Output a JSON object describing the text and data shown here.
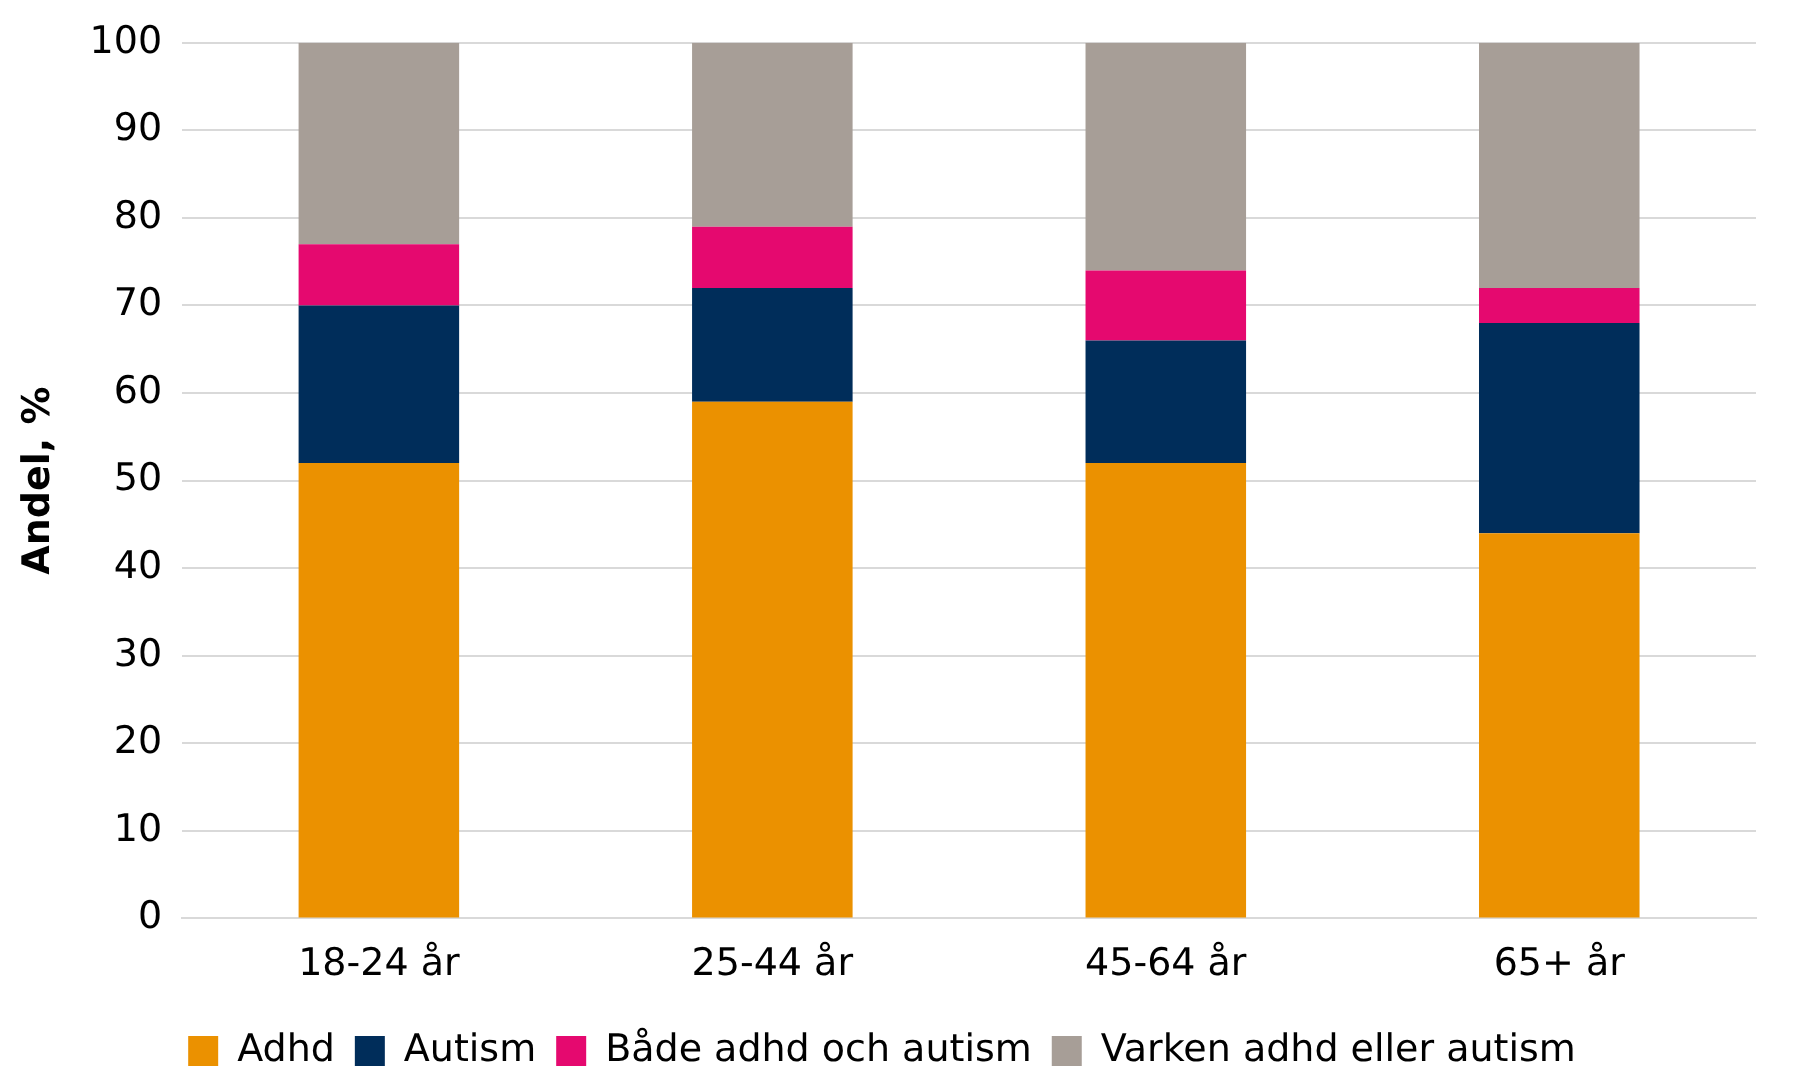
{
  "chart_data": {
    "type": "bar",
    "stacked": true,
    "ylabel": "Andel, %",
    "categories": [
      "18-24 år",
      "25-44 år",
      "45-64 år",
      "65+ år"
    ],
    "series": [
      {
        "name": "Adhd",
        "color": "#eb9100",
        "values": [
          52,
          59,
          52,
          44
        ]
      },
      {
        "name": "Autism",
        "color": "#002d5a",
        "values": [
          18,
          13,
          14,
          24
        ]
      },
      {
        "name": "Både adhd och autism",
        "color": "#e5096f",
        "values": [
          7,
          7,
          8,
          4
        ]
      },
      {
        "name": "Varken adhd eller autism",
        "color": "#a79e97",
        "values": [
          23,
          21,
          26,
          28
        ]
      }
    ],
    "ylim": [
      0,
      100
    ],
    "yticks": [
      0,
      10,
      20,
      30,
      40,
      50,
      60,
      70,
      80,
      90,
      100
    ],
    "grid": "y",
    "legend": "bottom"
  }
}
